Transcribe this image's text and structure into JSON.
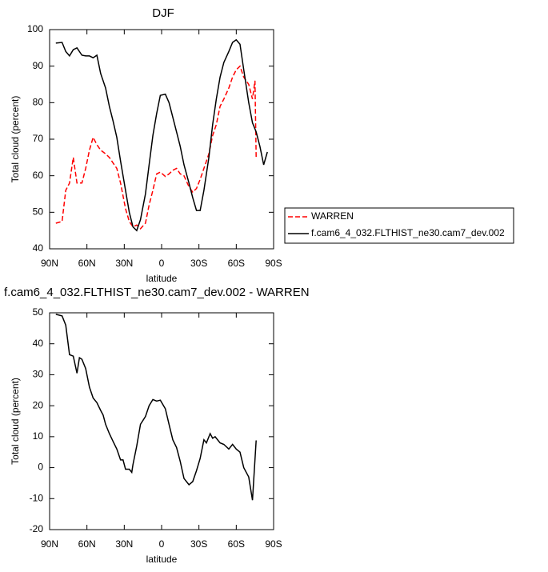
{
  "chart_data": [
    {
      "type": "line",
      "title": "DJF",
      "x_label": "latitude",
      "y_label": "Total cloud (percent)",
      "xlim": [
        90,
        -90
      ],
      "xticks": [
        {
          "value": 90,
          "label": "90N"
        },
        {
          "value": 60,
          "label": "60N"
        },
        {
          "value": 30,
          "label": "30N"
        },
        0,
        {
          "value": -30,
          "label": "30S"
        },
        {
          "value": -60,
          "label": "60S"
        },
        {
          "value": -90,
          "label": "90S"
        }
      ],
      "ylim": [
        40,
        100
      ],
      "yticks": [
        40,
        50,
        60,
        70,
        80,
        90,
        100
      ],
      "legend": "right",
      "series": [
        {
          "name": "WARREN",
          "color": "#ff0000",
          "dash": true,
          "x": [
            85,
            80,
            77,
            74,
            71,
            68,
            64,
            61,
            58,
            55,
            52,
            49,
            45,
            42,
            39,
            36,
            33,
            29,
            26,
            23,
            20,
            17,
            13,
            10,
            7,
            4,
            1,
            -3,
            -6,
            -9,
            -12,
            -15,
            -18,
            -22,
            -25,
            -28,
            -31,
            -34,
            -38,
            -41,
            -44,
            -47,
            -50,
            -54,
            -57,
            -60,
            -63,
            -66,
            -70,
            -73,
            -75,
            -76
          ],
          "values": [
            47,
            47.5,
            56,
            58,
            65,
            58,
            58,
            62,
            67,
            70.5,
            68.5,
            67,
            66,
            65,
            63.5,
            62,
            58,
            51,
            47.5,
            46,
            46.5,
            45.5,
            47,
            52,
            56,
            60.5,
            61,
            59.8,
            60.5,
            61.5,
            62,
            60.5,
            60,
            57,
            55.5,
            56.5,
            59,
            62,
            66,
            71,
            74,
            79,
            81,
            84,
            87,
            89,
            90,
            87,
            85,
            81,
            86,
            65
          ]
        },
        {
          "name": "f.cam6_4_032.FLTHIST_ne30.cam7_dev.002",
          "color": "#000000",
          "dash": false,
          "x": [
            85,
            80,
            77,
            74,
            71,
            68,
            64,
            61,
            58,
            55,
            52,
            49,
            45,
            42,
            39,
            36,
            33,
            29,
            26,
            23,
            20,
            17,
            13,
            10,
            7,
            4,
            1,
            -3,
            -6,
            -9,
            -12,
            -15,
            -18,
            -22,
            -25,
            -28,
            -31,
            -34,
            -38,
            -41,
            -44,
            -47,
            -50,
            -54,
            -57,
            -60,
            -63,
            -66,
            -70,
            -73,
            -76,
            -79,
            -82,
            -85
          ],
          "values": [
            96.3,
            96.5,
            94,
            92.8,
            94.5,
            95,
            93,
            92.8,
            92.8,
            92.3,
            93,
            88,
            84,
            79,
            75,
            70.5,
            64,
            56,
            50,
            46,
            45,
            48,
            55,
            63,
            71,
            77,
            82,
            82.3,
            80,
            76,
            72,
            68,
            63,
            58,
            54,
            50.5,
            50.5,
            56,
            65,
            74,
            81,
            87,
            91,
            94,
            96.5,
            97.2,
            96,
            89,
            80,
            74.5,
            72,
            68,
            63,
            66.5
          ]
        }
      ]
    },
    {
      "type": "line",
      "title": "f.cam6_4_032.FLTHIST_ne30.cam7_dev.002 - WARREN",
      "x_label": "latitude",
      "y_label": "Total cloud (percent)",
      "xlim": [
        90,
        -90
      ],
      "xticks": [
        {
          "value": 90,
          "label": "90N"
        },
        {
          "value": 60,
          "label": "60N"
        },
        {
          "value": 30,
          "label": "30N"
        },
        0,
        {
          "value": -30,
          "label": "30S"
        },
        {
          "value": -60,
          "label": "60S"
        },
        {
          "value": -90,
          "label": "90S"
        }
      ],
      "ylim": [
        -20,
        50
      ],
      "yticks": [
        -20,
        -10,
        0,
        10,
        20,
        30,
        40,
        50
      ],
      "series": [
        {
          "color": "#000000",
          "dash": false,
          "x": [
            85,
            80,
            77,
            74,
            71,
            68,
            66,
            64,
            61,
            58,
            55,
            52,
            49,
            47,
            45,
            42,
            39,
            36,
            33,
            31,
            29,
            26,
            24,
            23,
            20,
            17,
            13,
            10,
            7,
            4,
            1,
            -3,
            -6,
            -9,
            -12,
            -15,
            -18,
            -22,
            -25,
            -28,
            -31,
            -34,
            -36,
            -39,
            -41,
            -43,
            -47,
            -50,
            -54,
            -57,
            -60,
            -63,
            -66,
            -70,
            -73,
            -76
          ],
          "values": [
            49.5,
            49,
            46,
            36.5,
            36,
            30.5,
            35.5,
            35,
            32,
            26,
            22.5,
            21,
            18.5,
            17,
            14,
            11,
            8.5,
            6,
            2.5,
            2.5,
            -0.5,
            -0.5,
            -1.5,
            1,
            7,
            14,
            16.5,
            20,
            22,
            21.5,
            21.8,
            19,
            14,
            9,
            6.5,
            2,
            -3.5,
            -5.5,
            -4.5,
            -1,
            3,
            9,
            8,
            11,
            9.5,
            10,
            8,
            7.5,
            6,
            7.5,
            6,
            5,
            0,
            -3,
            -10.5,
            8.8
          ]
        }
      ]
    }
  ]
}
